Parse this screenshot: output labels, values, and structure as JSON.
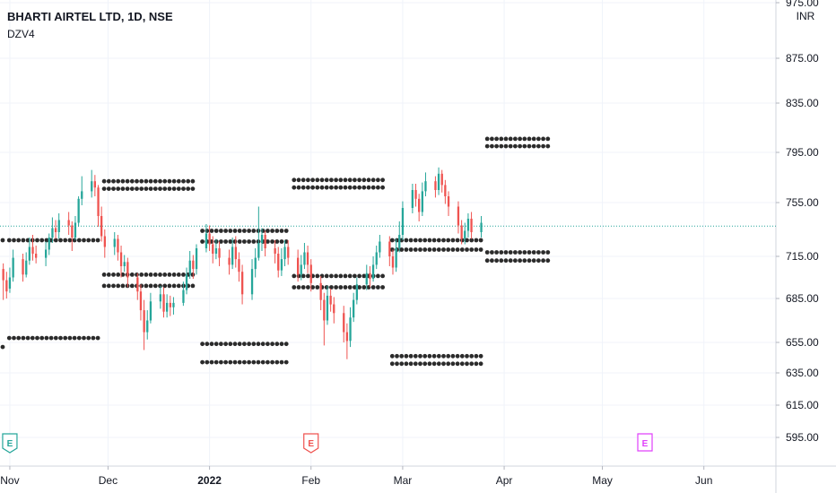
{
  "header": {
    "title": "BHARTI AIRTEL LTD, 1D, NSE",
    "indicator": "DZV4",
    "currency": "INR"
  },
  "colors": {
    "up": "#26a69a",
    "down": "#ef5350",
    "dots": "#2b2b2b",
    "grid": "#f0f3fa",
    "last_price_line": "#26a69a",
    "earnings_green": "#26a69a",
    "earnings_red": "#ef5350",
    "earnings_magenta": "#e040fb"
  },
  "chart_data": {
    "type": "candlestick",
    "title": "BHARTI AIRTEL LTD, 1D, NSE",
    "ylim": [
      580,
      980
    ],
    "y_ticks": [
      "975.00",
      "875.00",
      "835.00",
      "795.00",
      "755.00",
      "715.00",
      "685.00",
      "655.00",
      "635.00",
      "615.00",
      "595.00"
    ],
    "x_ticks": [
      {
        "label": "Nov",
        "day": 0,
        "bold": false
      },
      {
        "label": "Dec",
        "day": 30,
        "bold": false
      },
      {
        "label": "2022",
        "day": 61,
        "bold": true
      },
      {
        "label": "Feb",
        "day": 92,
        "bold": false
      },
      {
        "label": "Mar",
        "day": 120,
        "bold": false
      },
      {
        "label": "Apr",
        "day": 151,
        "bold": false
      },
      {
        "label": "May",
        "day": 181,
        "bold": false
      },
      {
        "label": "Jun",
        "day": 212,
        "bold": false
      }
    ],
    "x_range_days": [
      -3,
      234
    ],
    "last_price": 737.5,
    "candles": [
      [
        -2,
        706,
        698,
        710,
        684
      ],
      [
        -1,
        698,
        690,
        704,
        685
      ],
      [
        0,
        692,
        700,
        707,
        689
      ],
      [
        1,
        700,
        714,
        720,
        697
      ],
      [
        4,
        713,
        702,
        717,
        697
      ],
      [
        5,
        702,
        712,
        718,
        700
      ],
      [
        6,
        712,
        722,
        729,
        709
      ],
      [
        7,
        722,
        717,
        731,
        712
      ],
      [
        8,
        717,
        714,
        723,
        710
      ],
      [
        11,
        714,
        720,
        726,
        708
      ],
      [
        12,
        720,
        729,
        732,
        716
      ],
      [
        13,
        729,
        736,
        744,
        725
      ],
      [
        14,
        736,
        733,
        742,
        728
      ],
      [
        15,
        733,
        742,
        747,
        728
      ],
      [
        18,
        742,
        738,
        748,
        731
      ],
      [
        19,
        738,
        729,
        741,
        719
      ],
      [
        20,
        729,
        740,
        745,
        727
      ],
      [
        21,
        740,
        758,
        760,
        737
      ],
      [
        22,
        758,
        764,
        776,
        753
      ],
      [
        25,
        764,
        772,
        781,
        759
      ],
      [
        26,
        772,
        767,
        777,
        760
      ],
      [
        27,
        767,
        745,
        769,
        737
      ],
      [
        28,
        745,
        730,
        752,
        726
      ],
      [
        29,
        730,
        722,
        735,
        714
      ],
      [
        32,
        722,
        728,
        733,
        716
      ],
      [
        33,
        728,
        718,
        731,
        712
      ],
      [
        34,
        718,
        708,
        723,
        700
      ],
      [
        35,
        708,
        711,
        716,
        704
      ],
      [
        36,
        711,
        700,
        714,
        693
      ],
      [
        39,
        700,
        690,
        703,
        684
      ],
      [
        40,
        690,
        677,
        695,
        670
      ],
      [
        41,
        677,
        662,
        684,
        650
      ],
      [
        42,
        662,
        670,
        677,
        657
      ],
      [
        43,
        670,
        683,
        689,
        668
      ],
      [
        46,
        683,
        688,
        694,
        678
      ],
      [
        47,
        688,
        676,
        693,
        672
      ],
      [
        48,
        676,
        682,
        688,
        672
      ],
      [
        49,
        682,
        679,
        687,
        673
      ],
      [
        50,
        679,
        682,
        686,
        674
      ],
      [
        53,
        682,
        691,
        697,
        680
      ],
      [
        54,
        691,
        702,
        707,
        688
      ],
      [
        55,
        702,
        712,
        719,
        699
      ],
      [
        56,
        712,
        706,
        716,
        699
      ],
      [
        57,
        706,
        721,
        724,
        702
      ],
      [
        60,
        721,
        732,
        739,
        718
      ],
      [
        61,
        732,
        724,
        738,
        719
      ],
      [
        62,
        724,
        717,
        730,
        710
      ],
      [
        63,
        717,
        721,
        728,
        713
      ],
      [
        64,
        721,
        714,
        726,
        708
      ],
      [
        67,
        714,
        709,
        720,
        702
      ],
      [
        68,
        709,
        722,
        729,
        706
      ],
      [
        69,
        722,
        713,
        730,
        707
      ],
      [
        70,
        713,
        704,
        718,
        697
      ],
      [
        71,
        704,
        688,
        709,
        681
      ],
      [
        74,
        688,
        706,
        713,
        684
      ],
      [
        75,
        706,
        714,
        721,
        700
      ],
      [
        76,
        714,
        725,
        752,
        712
      ],
      [
        77,
        725,
        731,
        736,
        719
      ],
      [
        78,
        731,
        721,
        734,
        715
      ],
      [
        81,
        721,
        717,
        727,
        710
      ],
      [
        82,
        717,
        705,
        722,
        700
      ],
      [
        83,
        705,
        713,
        721,
        701
      ],
      [
        84,
        713,
        722,
        727,
        708
      ],
      [
        85,
        722,
        714,
        727,
        709
      ],
      [
        88,
        714,
        702,
        720,
        697
      ],
      [
        89,
        702,
        709,
        716,
        698
      ],
      [
        90,
        709,
        718,
        725,
        706
      ],
      [
        91,
        718,
        709,
        723,
        703
      ],
      [
        92,
        709,
        696,
        713,
        690
      ],
      [
        95,
        696,
        684,
        701,
        677
      ],
      [
        96,
        684,
        670,
        689,
        653
      ],
      [
        97,
        670,
        687,
        694,
        667
      ],
      [
        98,
        687,
        681,
        692,
        676
      ],
      [
        99,
        681,
        675,
        686,
        668
      ],
      [
        102,
        675,
        662,
        680,
        655
      ],
      [
        103,
        662,
        656,
        668,
        644
      ],
      [
        104,
        656,
        672,
        679,
        652
      ],
      [
        105,
        672,
        684,
        689,
        669
      ],
      [
        106,
        684,
        695,
        700,
        681
      ],
      [
        109,
        695,
        703,
        709,
        691
      ],
      [
        110,
        703,
        699,
        708,
        693
      ],
      [
        111,
        699,
        709,
        715,
        697
      ],
      [
        112,
        709,
        718,
        723,
        706
      ],
      [
        113,
        718,
        726,
        731,
        714
      ],
      [
        116,
        726,
        715,
        730,
        708
      ],
      [
        117,
        715,
        707,
        720,
        702
      ],
      [
        118,
        707,
        721,
        728,
        704
      ],
      [
        119,
        721,
        731,
        741,
        718
      ],
      [
        120,
        731,
        751,
        756,
        727
      ],
      [
        123,
        751,
        765,
        770,
        747
      ],
      [
        124,
        765,
        758,
        770,
        752
      ],
      [
        125,
        758,
        748,
        762,
        741
      ],
      [
        126,
        748,
        764,
        771,
        745
      ],
      [
        127,
        764,
        772,
        779,
        760
      ],
      [
        130,
        772,
        765,
        776,
        759
      ],
      [
        131,
        765,
        778,
        783,
        761
      ],
      [
        132,
        778,
        769,
        781,
        763
      ],
      [
        133,
        769,
        760,
        773,
        754
      ],
      [
        134,
        760,
        752,
        764,
        745
      ],
      [
        137,
        752,
        738,
        756,
        732
      ],
      [
        138,
        738,
        728,
        742,
        724
      ],
      [
        139,
        728,
        734,
        740,
        724
      ],
      [
        140,
        734,
        743,
        747,
        729
      ],
      [
        141,
        743,
        733,
        748,
        728
      ],
      [
        144,
        733,
        740,
        745,
        729
      ]
    ],
    "zones": [
      {
        "d0": -3,
        "d1": -1,
        "levels": [
          727,
          652
        ]
      },
      {
        "d0": -1,
        "d1": 28,
        "levels": [
          727,
          658
        ]
      },
      {
        "d0": 28,
        "d1": 58,
        "levels": [
          772,
          766,
          702,
          694
        ]
      },
      {
        "d0": 58,
        "d1": 86,
        "levels": [
          734,
          726,
          654,
          642
        ]
      },
      {
        "d0": 86,
        "d1": 116,
        "levels": [
          773,
          767,
          701,
          693
        ]
      },
      {
        "d0": 116,
        "d1": 145,
        "levels": [
          727,
          720,
          646,
          641
        ]
      },
      {
        "d0": 145,
        "d1": 166,
        "levels": [
          806,
          800,
          718,
          712
        ]
      }
    ],
    "earnings": [
      {
        "day": 0,
        "type": "green"
      },
      {
        "day": 92,
        "type": "red"
      },
      {
        "day": 194,
        "type": "magenta"
      }
    ]
  },
  "earnings_label": "E"
}
